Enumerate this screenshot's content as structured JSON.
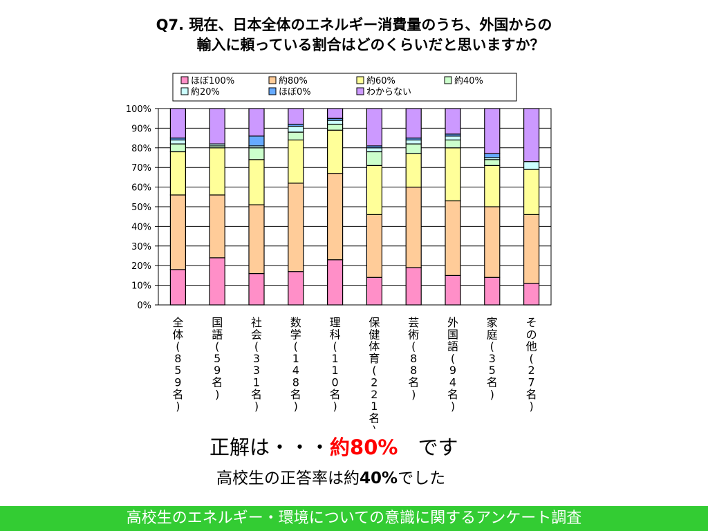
{
  "question": {
    "line1": "Q7. 現在、日本全体のエネルギー消費量のうち、外国からの",
    "line2": "輸入に頼っている割合はどのくらいだと思いますか？"
  },
  "answer": {
    "prefix": "正解は・・・",
    "highlight": "約80%",
    "suffix": "　です"
  },
  "result": {
    "prefix": "高校生の正答率は約",
    "value": "40%",
    "suffix": "でした"
  },
  "footer": {
    "text": "高校生のエネルギー・環境についての意識に関するアンケート調査"
  },
  "chart_data": {
    "type": "bar",
    "stacked": true,
    "percent": true,
    "categories": [
      "全体(859名)",
      "国語(59名)",
      "社会(331名)",
      "数学(148名)",
      "理科(110名)",
      "保健体育(221名)",
      "芸術(88名)",
      "外国語(94名)",
      "家庭(35名)",
      "その他(27名)"
    ],
    "series": [
      {
        "name": "ほぼ100%",
        "color": "#ff8fc8",
        "values": [
          18,
          24,
          16,
          17,
          23,
          14,
          19,
          15,
          14,
          11
        ]
      },
      {
        "name": "約80%",
        "color": "#ffcc99",
        "values": [
          38,
          32,
          35,
          45,
          44,
          32,
          41,
          38,
          36,
          35
        ]
      },
      {
        "name": "約60%",
        "color": "#ffff99",
        "values": [
          22,
          24,
          23,
          22,
          22,
          25,
          17,
          27,
          21,
          23
        ]
      },
      {
        "name": "約40%",
        "color": "#ccffcc",
        "values": [
          4,
          1,
          6,
          4,
          3,
          7,
          5,
          4,
          3,
          0
        ]
      },
      {
        "name": "約20%",
        "color": "#ccffff",
        "values": [
          2,
          1,
          1,
          3,
          2,
          2,
          2,
          2,
          1,
          4
        ]
      },
      {
        "name": "ほぼ0%",
        "color": "#66aaff",
        "values": [
          1,
          0,
          5,
          1,
          1,
          1,
          1,
          1,
          2,
          0
        ]
      },
      {
        "name": "わからない",
        "color": "#cc99ff",
        "values": [
          15,
          18,
          14,
          8,
          5,
          19,
          15,
          13,
          23,
          27
        ]
      }
    ],
    "y_ticks": [
      "0%",
      "10%",
      "20%",
      "30%",
      "40%",
      "50%",
      "60%",
      "70%",
      "80%",
      "90%",
      "100%"
    ],
    "ylim": [
      0,
      100
    ],
    "grid": true,
    "legend": "top"
  }
}
